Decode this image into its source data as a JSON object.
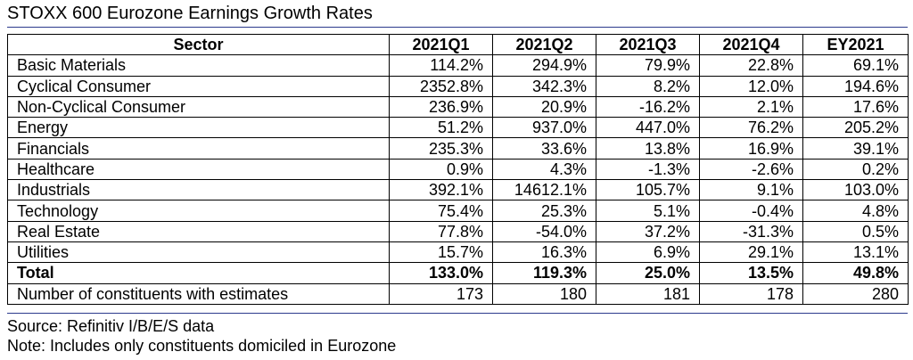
{
  "title": "STOXX 600 Eurozone Earnings Growth Rates",
  "chart_data": {
    "type": "table",
    "title": "STOXX 600 Eurozone Earnings Growth Rates",
    "columns": [
      "Sector",
      "2021Q1",
      "2021Q2",
      "2021Q3",
      "2021Q4",
      "EY2021"
    ],
    "rows": [
      {
        "label": "Basic Materials",
        "values": [
          "114.2%",
          "294.9%",
          "79.9%",
          "22.8%",
          "69.1%"
        ]
      },
      {
        "label": "Cyclical Consumer",
        "values": [
          "2352.8%",
          "342.3%",
          "8.2%",
          "12.0%",
          "194.6%"
        ]
      },
      {
        "label": "Non-Cyclical Consumer",
        "values": [
          "236.9%",
          "20.9%",
          "-16.2%",
          "2.1%",
          "17.6%"
        ]
      },
      {
        "label": "Energy",
        "values": [
          "51.2%",
          "937.0%",
          "447.0%",
          "76.2%",
          "205.2%"
        ]
      },
      {
        "label": "Financials",
        "values": [
          "235.3%",
          "33.6%",
          "13.8%",
          "16.9%",
          "39.1%"
        ]
      },
      {
        "label": "Healthcare",
        "values": [
          "0.9%",
          "4.3%",
          "-1.3%",
          "-2.6%",
          "0.2%"
        ]
      },
      {
        "label": "Industrials",
        "values": [
          "392.1%",
          "14612.1%",
          "105.7%",
          "9.1%",
          "103.0%"
        ]
      },
      {
        "label": "Technology",
        "values": [
          "75.4%",
          "25.3%",
          "5.1%",
          "-0.4%",
          "4.8%"
        ]
      },
      {
        "label": "Real Estate",
        "values": [
          "77.8%",
          "-54.0%",
          "37.2%",
          "-31.3%",
          "0.5%"
        ]
      },
      {
        "label": "Utilities",
        "values": [
          "15.7%",
          "16.3%",
          "6.9%",
          "29.1%",
          "13.1%"
        ]
      },
      {
        "label": "Total",
        "values": [
          "133.0%",
          "119.3%",
          "25.0%",
          "13.5%",
          "49.8%"
        ],
        "bold": true
      },
      {
        "label": "Number of constituents with estimates",
        "values": [
          "173",
          "180",
          "181",
          "178",
          "280"
        ]
      }
    ]
  },
  "source": "Source: Refinitiv I/B/E/S data",
  "note": "Note: Includes only constituents domiciled in Eurozone",
  "colors": {
    "rule": "#2b3a8c"
  }
}
